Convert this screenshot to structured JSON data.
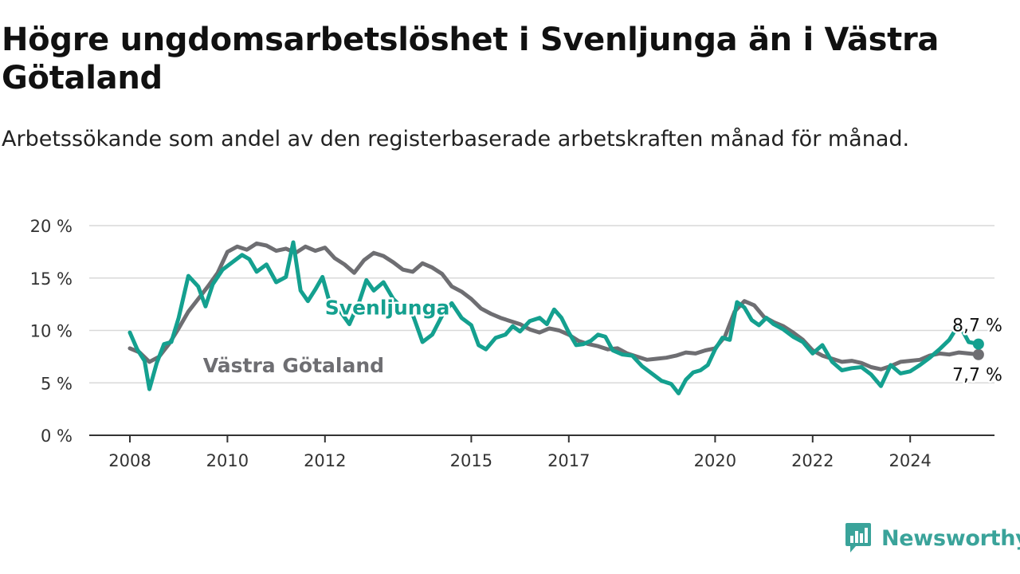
{
  "title": "Högre ungdomsarbetslöshet i Svenljunga än i Västra Götaland",
  "subtitle": "Arbetssökande som andel av den registerbaserade arbetskraften månad för månad.",
  "brand": {
    "name": "Newsworthy",
    "color": "#3aa39a",
    "icon": "bar-chart-logo-icon"
  },
  "chart_data": {
    "type": "line",
    "title": "Högre ungdomsarbetslöshet i Svenljunga än i Västra Götaland",
    "subtitle": "Arbetssökande som andel av den registerbaserade arbetskraften månad för månad.",
    "xlabel": "",
    "ylabel": "",
    "x_range": [
      2008.0,
      2025.8
    ],
    "ylim": [
      0,
      20
    ],
    "y_ticks": [
      0,
      5,
      10,
      15,
      20
    ],
    "y_tick_labels": [
      "0 %",
      "5 %",
      "10 %",
      "15 %",
      "20 %"
    ],
    "x_ticks": [
      2008,
      2010,
      2012,
      2015,
      2017,
      2020,
      2022,
      2024
    ],
    "x_tick_labels": [
      "2008",
      "2010",
      "2012",
      "2015",
      "2017",
      "2020",
      "2022",
      "2024"
    ],
    "grid": "horizontal",
    "legend": "inline labels",
    "series": [
      {
        "name": "Västra Götaland",
        "color": "#6e6e72",
        "label_at": [
          2009.5,
          6.7
        ],
        "end_label": "7,7 %",
        "points": [
          [
            2008.0,
            8.3
          ],
          [
            2008.2,
            7.9
          ],
          [
            2008.4,
            7.0
          ],
          [
            2008.6,
            7.5
          ],
          [
            2008.8,
            8.7
          ],
          [
            2009.0,
            10.2
          ],
          [
            2009.2,
            11.8
          ],
          [
            2009.4,
            13.0
          ],
          [
            2009.6,
            14.2
          ],
          [
            2009.8,
            15.5
          ],
          [
            2010.0,
            17.5
          ],
          [
            2010.2,
            18.0
          ],
          [
            2010.4,
            17.7
          ],
          [
            2010.6,
            18.3
          ],
          [
            2010.8,
            18.1
          ],
          [
            2011.0,
            17.6
          ],
          [
            2011.2,
            17.8
          ],
          [
            2011.4,
            17.4
          ],
          [
            2011.6,
            18.0
          ],
          [
            2011.8,
            17.6
          ],
          [
            2012.0,
            17.9
          ],
          [
            2012.2,
            16.9
          ],
          [
            2012.4,
            16.3
          ],
          [
            2012.6,
            15.5
          ],
          [
            2012.8,
            16.7
          ],
          [
            2013.0,
            17.4
          ],
          [
            2013.2,
            17.1
          ],
          [
            2013.4,
            16.5
          ],
          [
            2013.6,
            15.8
          ],
          [
            2013.8,
            15.6
          ],
          [
            2014.0,
            16.4
          ],
          [
            2014.2,
            16.0
          ],
          [
            2014.4,
            15.4
          ],
          [
            2014.6,
            14.2
          ],
          [
            2014.8,
            13.7
          ],
          [
            2015.0,
            13.0
          ],
          [
            2015.2,
            12.1
          ],
          [
            2015.4,
            11.6
          ],
          [
            2015.6,
            11.2
          ],
          [
            2015.8,
            10.9
          ],
          [
            2016.0,
            10.6
          ],
          [
            2016.2,
            10.1
          ],
          [
            2016.4,
            9.8
          ],
          [
            2016.6,
            10.2
          ],
          [
            2016.8,
            10.0
          ],
          [
            2017.0,
            9.6
          ],
          [
            2017.2,
            9.0
          ],
          [
            2017.4,
            8.7
          ],
          [
            2017.6,
            8.5
          ],
          [
            2017.8,
            8.2
          ],
          [
            2018.0,
            8.3
          ],
          [
            2018.2,
            7.8
          ],
          [
            2018.4,
            7.5
          ],
          [
            2018.6,
            7.2
          ],
          [
            2018.8,
            7.3
          ],
          [
            2019.0,
            7.4
          ],
          [
            2019.2,
            7.6
          ],
          [
            2019.4,
            7.9
          ],
          [
            2019.6,
            7.8
          ],
          [
            2019.8,
            8.1
          ],
          [
            2020.0,
            8.3
          ],
          [
            2020.2,
            9.4
          ],
          [
            2020.4,
            11.8
          ],
          [
            2020.6,
            12.8
          ],
          [
            2020.8,
            12.4
          ],
          [
            2021.0,
            11.3
          ],
          [
            2021.2,
            10.8
          ],
          [
            2021.4,
            10.4
          ],
          [
            2021.6,
            9.8
          ],
          [
            2021.8,
            9.1
          ],
          [
            2022.0,
            8.1
          ],
          [
            2022.2,
            7.6
          ],
          [
            2022.4,
            7.3
          ],
          [
            2022.6,
            7.0
          ],
          [
            2022.8,
            7.1
          ],
          [
            2023.0,
            6.9
          ],
          [
            2023.2,
            6.5
          ],
          [
            2023.4,
            6.3
          ],
          [
            2023.6,
            6.6
          ],
          [
            2023.8,
            7.0
          ],
          [
            2024.0,
            7.1
          ],
          [
            2024.2,
            7.2
          ],
          [
            2024.4,
            7.6
          ],
          [
            2024.6,
            7.8
          ],
          [
            2024.8,
            7.7
          ],
          [
            2025.0,
            7.9
          ],
          [
            2025.2,
            7.8
          ],
          [
            2025.4,
            7.7
          ]
        ]
      },
      {
        "name": "Svenljunga",
        "color": "#14a08f",
        "label_at": [
          2012.0,
          12.2
        ],
        "end_label": "8,7 %",
        "points": [
          [
            2008.0,
            9.8
          ],
          [
            2008.15,
            8.2
          ],
          [
            2008.3,
            7.1
          ],
          [
            2008.4,
            4.4
          ],
          [
            2008.55,
            6.9
          ],
          [
            2008.7,
            8.7
          ],
          [
            2008.85,
            8.9
          ],
          [
            2009.0,
            11.2
          ],
          [
            2009.2,
            15.2
          ],
          [
            2009.4,
            14.2
          ],
          [
            2009.55,
            12.3
          ],
          [
            2009.7,
            14.4
          ],
          [
            2009.9,
            15.8
          ],
          [
            2010.1,
            16.5
          ],
          [
            2010.3,
            17.2
          ],
          [
            2010.45,
            16.8
          ],
          [
            2010.6,
            15.6
          ],
          [
            2010.8,
            16.3
          ],
          [
            2011.0,
            14.6
          ],
          [
            2011.2,
            15.1
          ],
          [
            2011.35,
            18.4
          ],
          [
            2011.5,
            13.8
          ],
          [
            2011.65,
            12.8
          ],
          [
            2011.8,
            13.9
          ],
          [
            2011.95,
            15.1
          ],
          [
            2012.1,
            12.6
          ],
          [
            2012.3,
            11.9
          ],
          [
            2012.5,
            10.6
          ],
          [
            2012.7,
            12.7
          ],
          [
            2012.85,
            14.8
          ],
          [
            2013.0,
            13.8
          ],
          [
            2013.2,
            14.6
          ],
          [
            2013.4,
            13.0
          ],
          [
            2013.6,
            12.1
          ],
          [
            2013.8,
            11.5
          ],
          [
            2014.0,
            8.9
          ],
          [
            2014.2,
            9.6
          ],
          [
            2014.4,
            11.4
          ],
          [
            2014.6,
            12.6
          ],
          [
            2014.8,
            11.2
          ],
          [
            2015.0,
            10.5
          ],
          [
            2015.15,
            8.6
          ],
          [
            2015.3,
            8.2
          ],
          [
            2015.5,
            9.3
          ],
          [
            2015.7,
            9.6
          ],
          [
            2015.85,
            10.4
          ],
          [
            2016.0,
            9.9
          ],
          [
            2016.2,
            10.9
          ],
          [
            2016.4,
            11.2
          ],
          [
            2016.55,
            10.6
          ],
          [
            2016.7,
            12.0
          ],
          [
            2016.85,
            11.2
          ],
          [
            2017.0,
            9.8
          ],
          [
            2017.15,
            8.6
          ],
          [
            2017.3,
            8.7
          ],
          [
            2017.45,
            9.0
          ],
          [
            2017.6,
            9.6
          ],
          [
            2017.75,
            9.4
          ],
          [
            2017.9,
            8.1
          ],
          [
            2018.1,
            7.7
          ],
          [
            2018.3,
            7.6
          ],
          [
            2018.5,
            6.6
          ],
          [
            2018.7,
            5.9
          ],
          [
            2018.9,
            5.2
          ],
          [
            2019.1,
            4.9
          ],
          [
            2019.25,
            4.0
          ],
          [
            2019.4,
            5.3
          ],
          [
            2019.55,
            6.0
          ],
          [
            2019.7,
            6.2
          ],
          [
            2019.85,
            6.7
          ],
          [
            2020.0,
            8.2
          ],
          [
            2020.15,
            9.3
          ],
          [
            2020.3,
            9.1
          ],
          [
            2020.45,
            12.7
          ],
          [
            2020.6,
            12.2
          ],
          [
            2020.75,
            11.0
          ],
          [
            2020.9,
            10.5
          ],
          [
            2021.05,
            11.2
          ],
          [
            2021.2,
            10.6
          ],
          [
            2021.4,
            10.1
          ],
          [
            2021.6,
            9.4
          ],
          [
            2021.8,
            8.9
          ],
          [
            2022.0,
            7.8
          ],
          [
            2022.2,
            8.6
          ],
          [
            2022.4,
            7.0
          ],
          [
            2022.6,
            6.2
          ],
          [
            2022.8,
            6.4
          ],
          [
            2023.0,
            6.5
          ],
          [
            2023.2,
            5.8
          ],
          [
            2023.4,
            4.7
          ],
          [
            2023.6,
            6.7
          ],
          [
            2023.8,
            5.9
          ],
          [
            2024.0,
            6.1
          ],
          [
            2024.2,
            6.7
          ],
          [
            2024.4,
            7.4
          ],
          [
            2024.6,
            8.2
          ],
          [
            2024.8,
            9.1
          ],
          [
            2025.0,
            10.6
          ],
          [
            2025.2,
            8.9
          ],
          [
            2025.4,
            8.7
          ]
        ]
      }
    ]
  }
}
